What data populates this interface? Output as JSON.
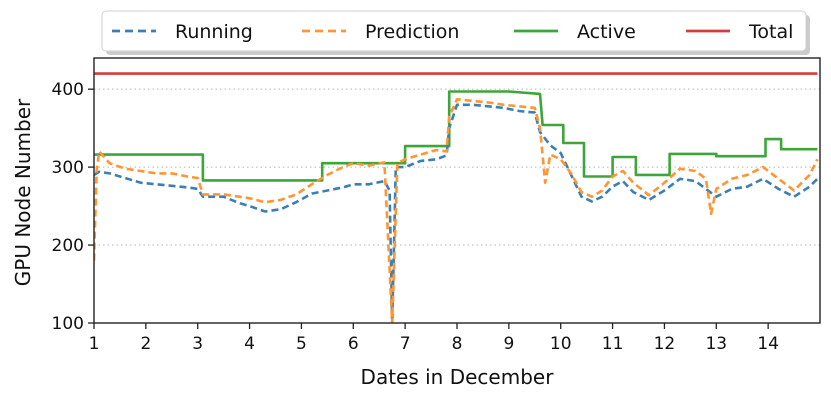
{
  "chart_data": {
    "type": "line",
    "title": "",
    "xlabel": "Dates in December",
    "ylabel": "GPU Node Number",
    "xlim": [
      1,
      15
    ],
    "ylim": [
      100,
      440
    ],
    "x_ticks": [
      "1",
      "2",
      "3",
      "4",
      "5",
      "6",
      "7",
      "8",
      "9",
      "10",
      "11",
      "12",
      "13",
      "14"
    ],
    "y_ticks": [
      "100",
      "200",
      "300",
      "400"
    ],
    "grid": "horizontal dotted",
    "legend": {
      "placement": "top",
      "entries": [
        "Running",
        "Prediction",
        "Active",
        "Total"
      ]
    },
    "colors": {
      "Running": "#3b7fb5",
      "Prediction": "#ff9533",
      "Active": "#3ea53a",
      "Total": "#d63c3c"
    },
    "series": [
      {
        "name": "Running",
        "style": "dashed",
        "points": [
          [
            1.0,
            290
          ],
          [
            1.1,
            294
          ],
          [
            1.3,
            292
          ],
          [
            1.6,
            286
          ],
          [
            1.9,
            280
          ],
          [
            2.2,
            278
          ],
          [
            2.5,
            276
          ],
          [
            2.8,
            274
          ],
          [
            3.0,
            272
          ],
          [
            3.1,
            262
          ],
          [
            3.5,
            262
          ],
          [
            3.8,
            254
          ],
          [
            4.0,
            250
          ],
          [
            4.3,
            243
          ],
          [
            4.6,
            246
          ],
          [
            4.9,
            255
          ],
          [
            5.2,
            266
          ],
          [
            5.5,
            270
          ],
          [
            5.8,
            274
          ],
          [
            6.0,
            278
          ],
          [
            6.3,
            278
          ],
          [
            6.6,
            282
          ],
          [
            6.7,
            270
          ],
          [
            6.75,
            100
          ],
          [
            6.82,
            300
          ],
          [
            7.0,
            300
          ],
          [
            7.3,
            308
          ],
          [
            7.6,
            310
          ],
          [
            7.8,
            315
          ],
          [
            7.85,
            350
          ],
          [
            8.0,
            380
          ],
          [
            8.3,
            380
          ],
          [
            8.6,
            378
          ],
          [
            8.9,
            376
          ],
          [
            9.2,
            372
          ],
          [
            9.5,
            370
          ],
          [
            9.6,
            345
          ],
          [
            9.8,
            328
          ],
          [
            10.0,
            318
          ],
          [
            10.2,
            290
          ],
          [
            10.4,
            262
          ],
          [
            10.6,
            256
          ],
          [
            10.8,
            262
          ],
          [
            11.0,
            275
          ],
          [
            11.2,
            282
          ],
          [
            11.4,
            268
          ],
          [
            11.7,
            258
          ],
          [
            12.0,
            270
          ],
          [
            12.3,
            285
          ],
          [
            12.6,
            282
          ],
          [
            12.8,
            272
          ],
          [
            13.0,
            262
          ],
          [
            13.3,
            272
          ],
          [
            13.6,
            275
          ],
          [
            13.9,
            285
          ],
          [
            14.2,
            272
          ],
          [
            14.5,
            262
          ],
          [
            14.8,
            275
          ],
          [
            14.95,
            285
          ]
        ]
      },
      {
        "name": "Prediction",
        "style": "dashed",
        "points": [
          [
            1.0,
            180
          ],
          [
            1.05,
            295
          ],
          [
            1.1,
            320
          ],
          [
            1.3,
            305
          ],
          [
            1.6,
            298
          ],
          [
            1.9,
            295
          ],
          [
            2.2,
            292
          ],
          [
            2.5,
            292
          ],
          [
            2.8,
            288
          ],
          [
            3.0,
            286
          ],
          [
            3.1,
            265
          ],
          [
            3.5,
            265
          ],
          [
            3.8,
            262
          ],
          [
            4.0,
            260
          ],
          [
            4.3,
            255
          ],
          [
            4.6,
            258
          ],
          [
            4.9,
            265
          ],
          [
            5.2,
            278
          ],
          [
            5.5,
            290
          ],
          [
            5.8,
            300
          ],
          [
            6.0,
            305
          ],
          [
            6.3,
            302
          ],
          [
            6.6,
            306
          ],
          [
            6.75,
            100
          ],
          [
            6.85,
            305
          ],
          [
            7.0,
            310
          ],
          [
            7.3,
            316
          ],
          [
            7.6,
            322
          ],
          [
            7.8,
            320
          ],
          [
            7.85,
            365
          ],
          [
            8.0,
            387
          ],
          [
            8.3,
            385
          ],
          [
            8.6,
            383
          ],
          [
            8.9,
            380
          ],
          [
            9.2,
            378
          ],
          [
            9.5,
            376
          ],
          [
            9.6,
            350
          ],
          [
            9.7,
            280
          ],
          [
            9.8,
            316
          ],
          [
            10.0,
            310
          ],
          [
            10.2,
            292
          ],
          [
            10.4,
            268
          ],
          [
            10.6,
            262
          ],
          [
            10.8,
            270
          ],
          [
            11.0,
            288
          ],
          [
            11.2,
            295
          ],
          [
            11.4,
            280
          ],
          [
            11.7,
            264
          ],
          [
            12.0,
            280
          ],
          [
            12.3,
            298
          ],
          [
            12.6,
            295
          ],
          [
            12.8,
            285
          ],
          [
            12.9,
            240
          ],
          [
            13.0,
            272
          ],
          [
            13.3,
            285
          ],
          [
            13.6,
            290
          ],
          [
            13.9,
            300
          ],
          [
            14.2,
            285
          ],
          [
            14.5,
            270
          ],
          [
            14.8,
            290
          ],
          [
            14.95,
            310
          ]
        ]
      },
      {
        "name": "Active",
        "style": "solid",
        "points": [
          [
            1.0,
            316
          ],
          [
            3.1,
            316
          ],
          [
            3.1,
            283
          ],
          [
            5.4,
            283
          ],
          [
            5.4,
            305
          ],
          [
            7.0,
            305
          ],
          [
            7.0,
            327
          ],
          [
            7.85,
            327
          ],
          [
            7.85,
            397
          ],
          [
            9.0,
            397
          ],
          [
            9.6,
            394
          ],
          [
            9.65,
            354
          ],
          [
            10.05,
            354
          ],
          [
            10.05,
            331
          ],
          [
            10.45,
            331
          ],
          [
            10.45,
            288
          ],
          [
            11.0,
            288
          ],
          [
            11.0,
            313
          ],
          [
            11.45,
            313
          ],
          [
            11.45,
            290
          ],
          [
            12.1,
            290
          ],
          [
            12.1,
            317
          ],
          [
            13.0,
            317
          ],
          [
            13.0,
            314
          ],
          [
            13.95,
            314
          ],
          [
            13.95,
            336
          ],
          [
            14.25,
            336
          ],
          [
            14.25,
            323
          ],
          [
            14.95,
            323
          ]
        ]
      },
      {
        "name": "Total",
        "style": "solid",
        "points": [
          [
            1.0,
            420
          ],
          [
            14.95,
            420
          ]
        ]
      }
    ]
  }
}
